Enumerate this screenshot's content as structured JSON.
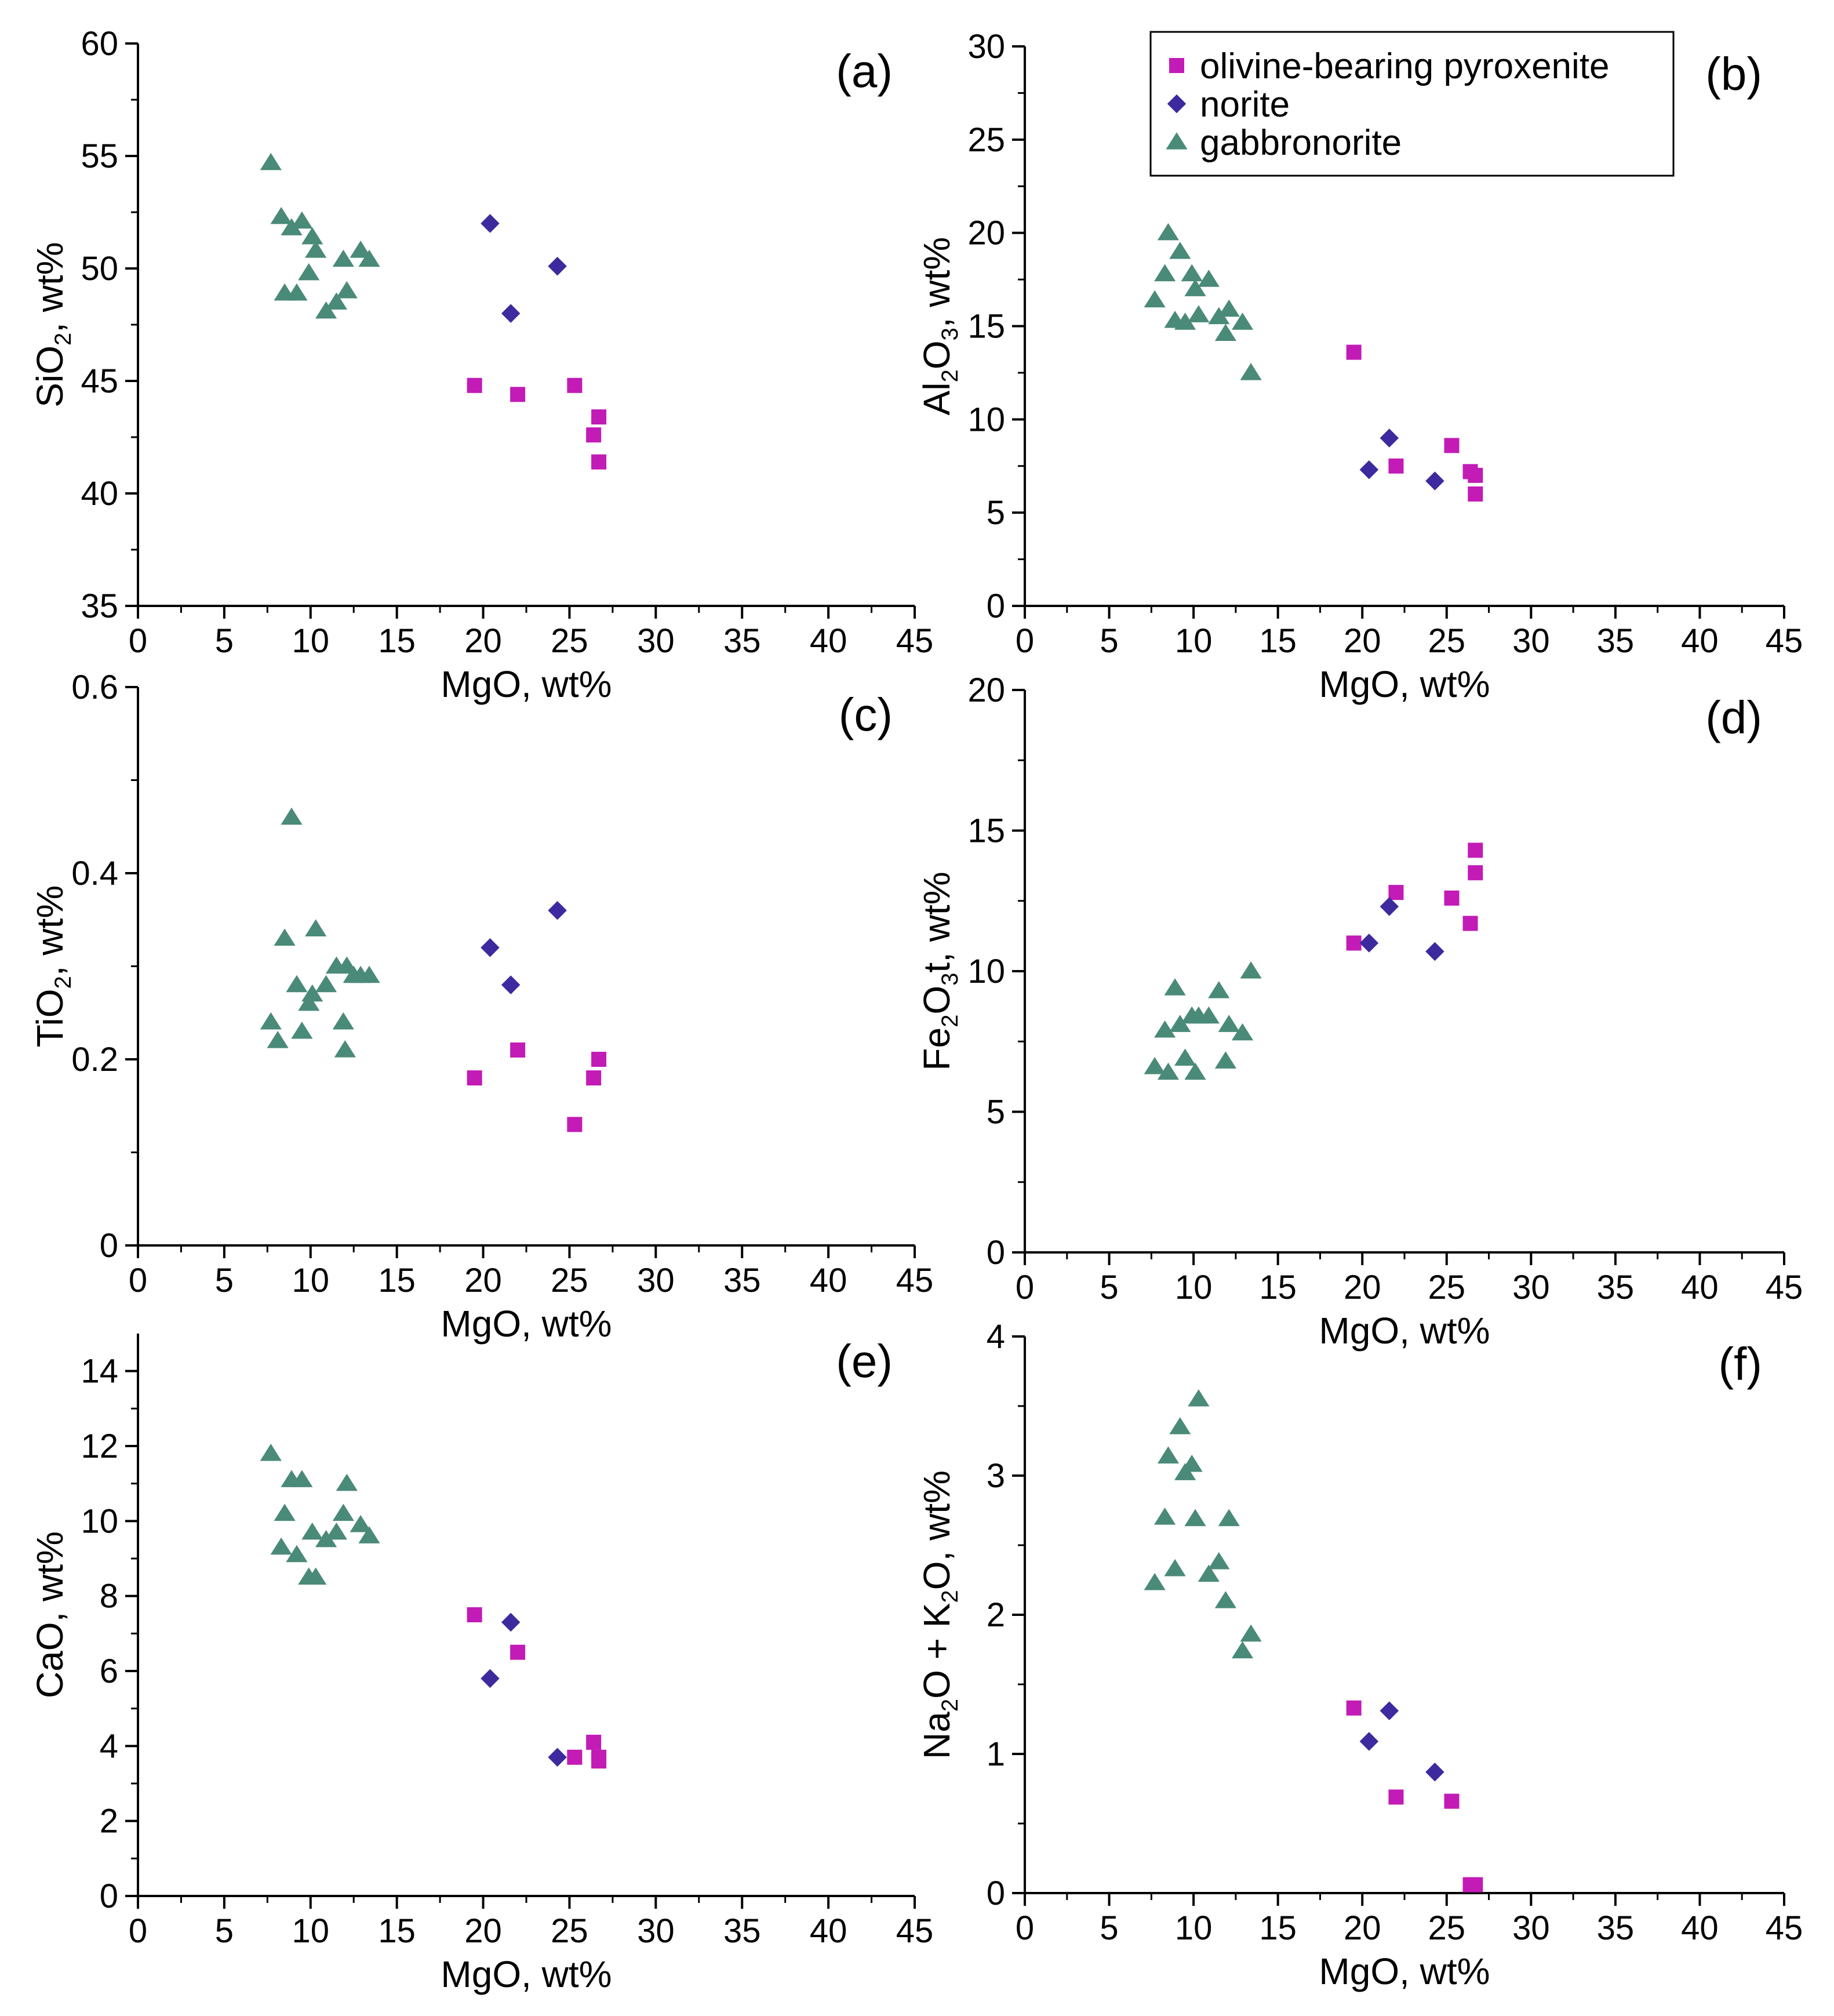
{
  "colors": {
    "olivine_pyroxenite": "#c21bb6",
    "norite": "#3d2a9e",
    "gabbronorite": "#4a8a78",
    "axis": "#000000"
  },
  "legend": {
    "placement": "top-right of panel (b)",
    "entries": [
      {
        "label": "olivine-bearing pyroxenite",
        "marker": "square"
      },
      {
        "label": "norite",
        "marker": "diamond"
      },
      {
        "label": "gabbronorite",
        "marker": "triangle"
      }
    ]
  },
  "chart_data": [
    {
      "type": "scatter",
      "panel": "(a)",
      "xlabel": "MgO,  wt%",
      "ylabel": "SiO2, wt%",
      "ylabel_parts": [
        "SiO",
        "2",
        ", wt%"
      ],
      "xlim": [
        0,
        45
      ],
      "ylim": [
        35,
        60
      ],
      "xticks": [
        0,
        5,
        10,
        15,
        20,
        25,
        30,
        35,
        40,
        45
      ],
      "yticks": [
        35,
        40,
        45,
        50,
        55,
        60
      ],
      "series": [
        {
          "name": "olivine-bearing pyroxenite",
          "marker": "square",
          "x": [
            19.5,
            22.0,
            25.3,
            26.4,
            26.7,
            26.7
          ],
          "y": [
            44.8,
            44.4,
            44.8,
            42.6,
            43.4,
            41.4
          ]
        },
        {
          "name": "norite",
          "marker": "diamond",
          "x": [
            20.4,
            21.6,
            24.3
          ],
          "y": [
            52.0,
            48.0,
            50.1
          ]
        },
        {
          "name": "gabbronorite",
          "marker": "triangle",
          "x": [
            7.7,
            8.3,
            8.5,
            8.9,
            9.2,
            9.5,
            9.9,
            10.1,
            10.3,
            10.9,
            11.5,
            11.9,
            12.1,
            12.9,
            13.4
          ],
          "y": [
            54.7,
            52.3,
            48.9,
            51.8,
            48.9,
            52.1,
            49.8,
            51.4,
            50.8,
            48.1,
            48.5,
            50.4,
            49.0,
            50.8,
            50.4
          ]
        }
      ]
    },
    {
      "type": "scatter",
      "panel": "(b)",
      "xlabel": "MgO,  wt%",
      "ylabel": "Al2O3, wt%",
      "ylabel_parts": [
        "Al",
        "2",
        "O",
        "3",
        ", wt%"
      ],
      "xlim": [
        0,
        45
      ],
      "ylim": [
        0,
        30
      ],
      "xticks": [
        0,
        5,
        10,
        15,
        20,
        25,
        30,
        35,
        40,
        45
      ],
      "yticks": [
        0,
        5,
        10,
        15,
        20,
        25,
        30
      ],
      "series": [
        {
          "name": "olivine-bearing pyroxenite",
          "marker": "square",
          "x": [
            19.5,
            22.0,
            25.3,
            26.4,
            26.7,
            26.7
          ],
          "y": [
            13.6,
            7.5,
            8.6,
            7.2,
            7.0,
            6.0
          ]
        },
        {
          "name": "norite",
          "marker": "diamond",
          "x": [
            20.4,
            21.6,
            24.3
          ],
          "y": [
            7.3,
            9.0,
            6.7
          ]
        },
        {
          "name": "gabbronorite",
          "marker": "triangle",
          "x": [
            7.7,
            8.3,
            8.5,
            8.9,
            9.2,
            9.5,
            9.9,
            10.1,
            10.3,
            10.9,
            11.5,
            11.9,
            12.1,
            12.9,
            13.4
          ],
          "y": [
            16.4,
            17.8,
            20.0,
            15.3,
            19.0,
            15.2,
            17.8,
            17.0,
            15.6,
            17.5,
            15.5,
            14.6,
            15.9,
            15.2,
            12.5
          ]
        }
      ]
    },
    {
      "type": "scatter",
      "panel": "(c)",
      "xlabel": "MgO,  wt%",
      "ylabel": "TiO2, wt%",
      "ylabel_parts": [
        "TiO",
        "2",
        ", wt%"
      ],
      "xlim": [
        0,
        45
      ],
      "ylim": [
        0,
        0.6
      ],
      "xticks": [
        0,
        5,
        10,
        15,
        20,
        25,
        30,
        35,
        40,
        45
      ],
      "yticks": [
        0,
        0.2,
        0.4,
        0.6
      ],
      "series": [
        {
          "name": "olivine-bearing pyroxenite",
          "marker": "square",
          "x": [
            19.5,
            22.0,
            25.3,
            26.4,
            26.7
          ],
          "y": [
            0.18,
            0.21,
            0.13,
            0.18,
            0.2
          ]
        },
        {
          "name": "norite",
          "marker": "diamond",
          "x": [
            20.4,
            21.6,
            24.3
          ],
          "y": [
            0.32,
            0.28,
            0.36
          ]
        },
        {
          "name": "gabbronorite",
          "marker": "triangle",
          "x": [
            7.7,
            8.1,
            8.5,
            8.9,
            9.2,
            9.5,
            9.9,
            10.1,
            10.3,
            10.9,
            11.5,
            11.9,
            12.0,
            12.1,
            12.5,
            12.9,
            13.4
          ],
          "y": [
            0.24,
            0.22,
            0.33,
            0.46,
            0.28,
            0.23,
            0.26,
            0.27,
            0.34,
            0.28,
            0.3,
            0.24,
            0.21,
            0.3,
            0.29,
            0.29,
            0.29
          ]
        }
      ]
    },
    {
      "type": "scatter",
      "panel": "(d)",
      "xlabel": "MgO,  wt%",
      "ylabel": "Fe2O3t, wt%",
      "ylabel_parts": [
        "Fe",
        "2",
        "O",
        "3",
        "t, wt%"
      ],
      "xlim": [
        0,
        45
      ],
      "ylim": [
        0,
        20
      ],
      "xticks": [
        0,
        5,
        10,
        15,
        20,
        25,
        30,
        35,
        40,
        45
      ],
      "yticks": [
        0,
        5,
        10,
        15,
        20
      ],
      "series": [
        {
          "name": "olivine-bearing pyroxenite",
          "marker": "square",
          "x": [
            19.5,
            22.0,
            25.3,
            26.4,
            26.7,
            26.7
          ],
          "y": [
            11.0,
            12.8,
            12.6,
            11.7,
            13.5,
            14.3
          ]
        },
        {
          "name": "norite",
          "marker": "diamond",
          "x": [
            20.4,
            21.6,
            24.3
          ],
          "y": [
            11.0,
            12.3,
            10.7
          ]
        },
        {
          "name": "gabbronorite",
          "marker": "triangle",
          "x": [
            7.7,
            8.3,
            8.5,
            8.9,
            9.2,
            9.5,
            9.9,
            10.1,
            10.3,
            10.9,
            11.5,
            11.9,
            12.1,
            12.9,
            13.4
          ],
          "y": [
            6.6,
            7.9,
            6.4,
            9.4,
            8.1,
            6.9,
            8.4,
            6.4,
            8.4,
            8.4,
            9.3,
            6.8,
            8.1,
            7.8,
            10.0
          ]
        }
      ]
    },
    {
      "type": "scatter",
      "panel": "(e)",
      "xlabel": "MgO,  wt%",
      "ylabel": "CaO, wt%",
      "ylabel_parts": [
        "CaO, wt%"
      ],
      "xlim": [
        0,
        45
      ],
      "ylim": [
        0,
        15
      ],
      "xticks": [
        0,
        5,
        10,
        15,
        20,
        25,
        30,
        35,
        40,
        45
      ],
      "yticks": [
        0,
        2,
        4,
        6,
        8,
        10,
        12,
        14
      ],
      "series": [
        {
          "name": "olivine-bearing pyroxenite",
          "marker": "square",
          "x": [
            19.5,
            22.0,
            25.3,
            26.4,
            26.7,
            26.7
          ],
          "y": [
            7.5,
            6.5,
            3.7,
            4.1,
            3.7,
            3.6
          ]
        },
        {
          "name": "norite",
          "marker": "diamond",
          "x": [
            20.4,
            21.6,
            24.3
          ],
          "y": [
            5.8,
            7.3,
            3.7
          ]
        },
        {
          "name": "gabbronorite",
          "marker": "triangle",
          "x": [
            7.7,
            8.3,
            8.5,
            8.9,
            9.2,
            9.5,
            9.9,
            10.1,
            10.3,
            10.9,
            11.5,
            11.9,
            12.1,
            12.9,
            13.4
          ],
          "y": [
            11.8,
            9.3,
            10.2,
            11.1,
            9.1,
            11.1,
            8.5,
            9.7,
            8.5,
            9.5,
            9.7,
            10.2,
            11.0,
            9.9,
            9.6
          ]
        }
      ]
    },
    {
      "type": "scatter",
      "panel": "(f)",
      "xlabel": "MgO,  wt%",
      "ylabel": "Na2O + K2O, wt%",
      "ylabel_parts": [
        "Na",
        "2",
        "O + K",
        "2",
        "O, wt%"
      ],
      "xlim": [
        0,
        45
      ],
      "ylim": [
        0,
        4
      ],
      "xticks": [
        0,
        5,
        10,
        15,
        20,
        25,
        30,
        35,
        40,
        45
      ],
      "yticks": [
        0,
        1,
        2,
        3,
        4
      ],
      "series": [
        {
          "name": "olivine-bearing pyroxenite",
          "marker": "square",
          "x": [
            19.5,
            22.0,
            25.3,
            26.4,
            26.7
          ],
          "y": [
            1.33,
            0.69,
            0.66,
            0.06,
            0.06
          ]
        },
        {
          "name": "norite",
          "marker": "diamond",
          "x": [
            20.4,
            21.6,
            24.3
          ],
          "y": [
            1.09,
            1.31,
            0.87
          ]
        },
        {
          "name": "gabbronorite",
          "marker": "triangle",
          "x": [
            7.7,
            8.3,
            8.5,
            8.9,
            9.2,
            9.5,
            9.9,
            10.1,
            10.3,
            10.9,
            11.5,
            11.9,
            12.1,
            12.9,
            13.4
          ],
          "y": [
            2.23,
            2.7,
            3.14,
            2.33,
            3.35,
            3.02,
            3.08,
            2.69,
            3.55,
            2.29,
            2.38,
            2.1,
            2.69,
            1.74,
            1.86
          ]
        }
      ]
    }
  ]
}
